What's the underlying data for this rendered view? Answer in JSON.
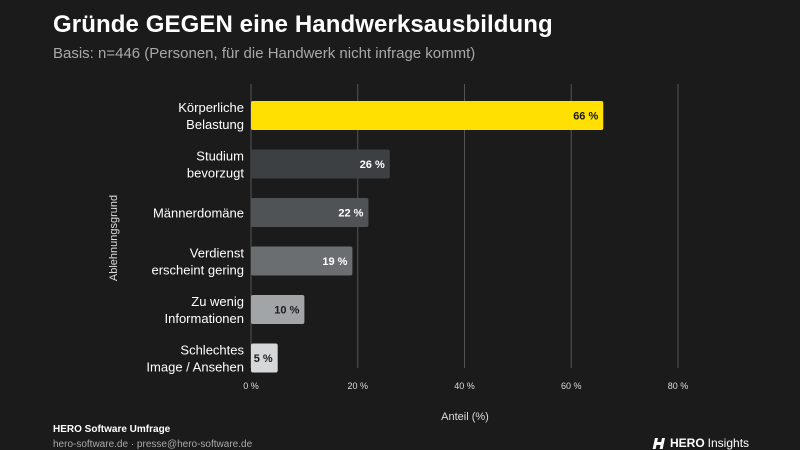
{
  "header": {
    "title": "Gründe GEGEN eine Handwerksausbildung",
    "subtitle": "Basis: n=446 (Personen, für die Handwerk nicht infrage kommt)"
  },
  "footer": {
    "source": "HERO Software Umfrage",
    "contact": "hero-software.de · presse@hero-software.de",
    "brand_strong": "HERO",
    "brand_rest": "Insights"
  },
  "colors": {
    "background": "#1b1b1b",
    "grid": "#555555",
    "bars": [
      "#ffe000",
      "#3d4043",
      "#505356",
      "#6b6e71",
      "#a2a5a8",
      "#d5d7d9"
    ]
  },
  "chart_data": {
    "type": "bar",
    "orientation": "horizontal",
    "categories": [
      [
        "Körperliche",
        "Belastung"
      ],
      [
        "Studium",
        "bevorzugt"
      ],
      [
        "Männerdomäne"
      ],
      [
        "Verdienst",
        "erscheint gering"
      ],
      [
        "Zu wenig",
        "Informationen"
      ],
      [
        "Schlechtes",
        "Image / Ansehen"
      ]
    ],
    "values": [
      66,
      26,
      22,
      19,
      10,
      5
    ],
    "value_labels": [
      "66 %",
      "26 %",
      "22 %",
      "19 %",
      "10 %",
      "5 %"
    ],
    "xlabel": "Anteil (%)",
    "ylabel": "Ablehnungsgrund",
    "xlim": [
      0,
      80
    ],
    "xticks": [
      0,
      20,
      40,
      60,
      80
    ],
    "xtick_labels": [
      "0 %",
      "20 %",
      "40 %",
      "60 %",
      "80 %"
    ],
    "grid": "vertical"
  }
}
